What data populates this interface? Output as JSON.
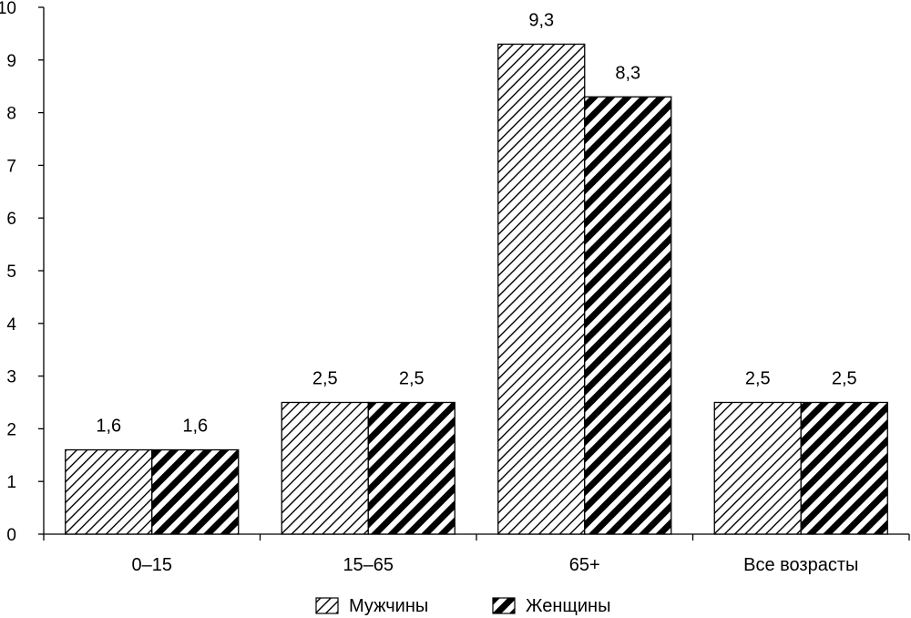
{
  "chart_data": {
    "type": "bar",
    "categories": [
      "0–15",
      "15–65",
      "65+",
      "Все возрасты"
    ],
    "series": [
      {
        "name": "Мужчины",
        "values": [
          1.6,
          2.5,
          9.3,
          2.5
        ],
        "labels": [
          "1,6",
          "2,5",
          "9,3",
          "2,5"
        ],
        "pattern": "thin-hatch"
      },
      {
        "name": "Женщины",
        "values": [
          1.6,
          2.5,
          8.3,
          2.5
        ],
        "labels": [
          "1,6",
          "2,5",
          "8,3",
          "2,5"
        ],
        "pattern": "thick-hatch"
      }
    ],
    "ylim": [
      0,
      10
    ],
    "yticks": [
      "0",
      "1",
      "2",
      "3",
      "4",
      "5",
      "6",
      "7",
      "8",
      "9",
      "10"
    ],
    "grid": false,
    "legend_position": "bottom-center",
    "colors": {
      "ink": "#000000",
      "background": "#ffffff"
    }
  }
}
